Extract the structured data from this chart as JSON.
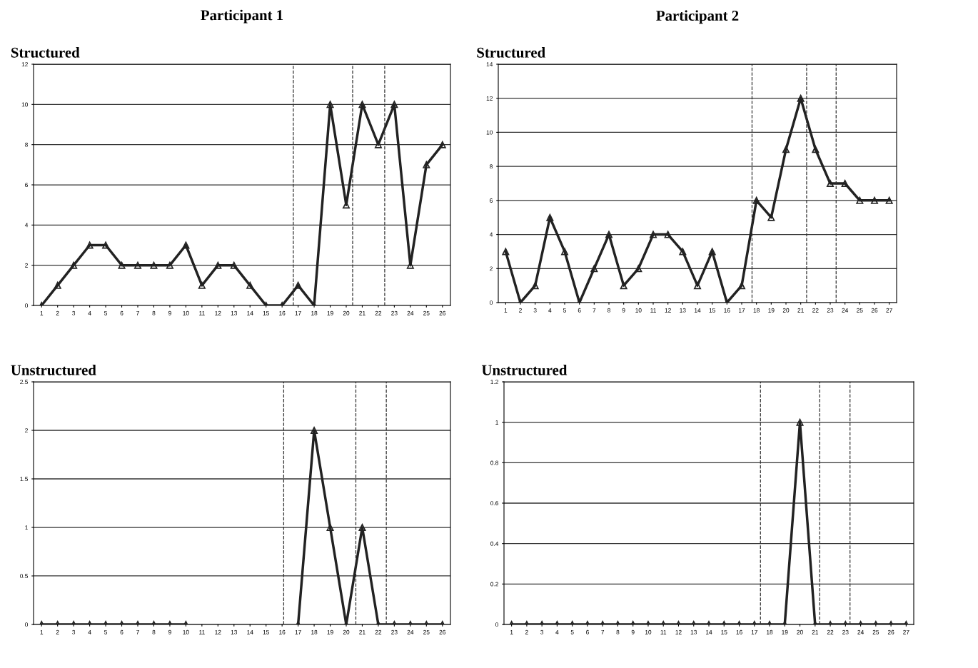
{
  "chart_data": [
    {
      "type": "line",
      "title": "Participant 1",
      "subtitle": "Structured",
      "x": [
        1,
        2,
        3,
        4,
        5,
        6,
        7,
        8,
        9,
        10,
        11,
        12,
        13,
        14,
        15,
        16,
        17,
        18,
        19,
        20,
        21,
        22,
        23,
        24,
        25,
        26
      ],
      "series": [
        {
          "color": "#222222",
          "values": [
            0,
            1,
            2,
            3,
            3,
            2,
            2,
            2,
            2,
            3,
            1,
            2,
            2,
            1,
            0,
            0,
            1,
            0,
            10,
            5,
            10,
            8,
            10,
            2,
            7,
            8
          ]
        }
      ],
      "xlim": [
        0.5,
        26.5
      ],
      "xticks": [
        1,
        2,
        3,
        4,
        5,
        6,
        7,
        8,
        9,
        10,
        11,
        12,
        13,
        14,
        15,
        16,
        17,
        18,
        19,
        20,
        21,
        22,
        23,
        24,
        25,
        26
      ],
      "ylim": [
        0,
        12
      ],
      "yticks": [
        0,
        2,
        4,
        6,
        8,
        10,
        12
      ],
      "ref_lines": [
        {
          "axis": "x",
          "value": 16.7,
          "line_style": "dashed"
        },
        {
          "axis": "x",
          "value": 20.4,
          "line_style": "dashed"
        },
        {
          "axis": "x",
          "value": 22.4,
          "line_style": "dashed"
        }
      ],
      "grid": "y",
      "marker": "triangle",
      "line_style": "solid"
    },
    {
      "type": "line",
      "title": "Participant 2",
      "subtitle": "Structured",
      "x": [
        1,
        2,
        3,
        4,
        5,
        6,
        7,
        8,
        9,
        10,
        11,
        12,
        13,
        14,
        15,
        16,
        17,
        18,
        19,
        20,
        21,
        22,
        23,
        24,
        25,
        26,
        27
      ],
      "series": [
        {
          "color": "#222222",
          "values": [
            3,
            0,
            1,
            5,
            3,
            0,
            2,
            4,
            1,
            2,
            4,
            4,
            3,
            1,
            3,
            0,
            1,
            6,
            5,
            9,
            12,
            9,
            7,
            7,
            6,
            6,
            6
          ]
        }
      ],
      "xlim": [
        0.5,
        27.5
      ],
      "xticks": [
        1,
        2,
        3,
        4,
        5,
        6,
        7,
        8,
        9,
        10,
        11,
        12,
        13,
        14,
        15,
        16,
        17,
        18,
        19,
        20,
        21,
        22,
        23,
        24,
        25,
        26,
        27
      ],
      "ylim": [
        0,
        14
      ],
      "yticks": [
        0,
        2,
        4,
        6,
        8,
        10,
        12,
        14
      ],
      "ref_lines": [
        {
          "axis": "x",
          "value": 17.7,
          "line_style": "dashed"
        },
        {
          "axis": "x",
          "value": 21.4,
          "line_style": "dashed"
        },
        {
          "axis": "x",
          "value": 23.4,
          "line_style": "dashed"
        }
      ],
      "grid": "y",
      "marker": "triangle",
      "line_style": "solid"
    },
    {
      "type": "line",
      "subtitle": "Unstructured",
      "x": [
        1,
        2,
        3,
        4,
        5,
        6,
        7,
        8,
        9,
        10,
        11,
        12,
        13,
        14,
        15,
        16,
        17,
        18,
        19,
        20,
        21,
        22,
        23,
        24,
        25,
        26
      ],
      "series": [
        {
          "color": "#222222",
          "values": [
            0,
            0,
            0,
            0,
            0,
            0,
            0,
            0,
            0,
            0,
            null,
            null,
            null,
            null,
            null,
            null,
            0,
            2,
            1,
            0,
            1,
            0,
            0,
            0,
            0,
            0
          ]
        }
      ],
      "xlim": [
        0.5,
        26.5
      ],
      "xticks": [
        1,
        2,
        3,
        4,
        5,
        6,
        7,
        8,
        9,
        10,
        11,
        12,
        13,
        14,
        15,
        16,
        17,
        18,
        19,
        20,
        21,
        22,
        23,
        24,
        25,
        26
      ],
      "ylim": [
        0,
        2.5
      ],
      "yticks": [
        0,
        0.5,
        1,
        1.5,
        2,
        2.5
      ],
      "ref_lines": [
        {
          "axis": "x",
          "value": 16.1,
          "line_style": "dashed"
        },
        {
          "axis": "x",
          "value": 20.6,
          "line_style": "dashed"
        },
        {
          "axis": "x",
          "value": 22.5,
          "line_style": "dashed"
        }
      ],
      "grid": "y",
      "marker": "triangle",
      "line_style": "solid"
    },
    {
      "type": "line",
      "subtitle": "Unstructured",
      "x": [
        1,
        2,
        3,
        4,
        5,
        6,
        7,
        8,
        9,
        10,
        11,
        12,
        13,
        14,
        15,
        16,
        17,
        18,
        19,
        20,
        21,
        22,
        23,
        24,
        25,
        26,
        27
      ],
      "series": [
        {
          "color": "#222222",
          "values": [
            0,
            0,
            0,
            0,
            0,
            0,
            0,
            0,
            0,
            0,
            0,
            0,
            0,
            0,
            0,
            0,
            0,
            0,
            0,
            1,
            0,
            0,
            0,
            0,
            0,
            0,
            0
          ]
        }
      ],
      "xlim": [
        0.5,
        27.5
      ],
      "xticks": [
        1,
        2,
        3,
        4,
        5,
        6,
        7,
        8,
        9,
        10,
        11,
        12,
        13,
        14,
        15,
        16,
        17,
        18,
        19,
        20,
        21,
        22,
        23,
        24,
        25,
        26,
        27
      ],
      "ylim": [
        0,
        1.2
      ],
      "yticks": [
        0,
        0.2,
        0.4,
        0.6,
        0.8,
        1,
        1.2
      ],
      "ref_lines": [
        {
          "axis": "x",
          "value": 17.4,
          "line_style": "dashed"
        },
        {
          "axis": "x",
          "value": 21.3,
          "line_style": "dashed"
        },
        {
          "axis": "x",
          "value": 23.3,
          "line_style": "dashed"
        }
      ],
      "grid": "y",
      "marker": "triangle",
      "line_style": "solid"
    }
  ]
}
